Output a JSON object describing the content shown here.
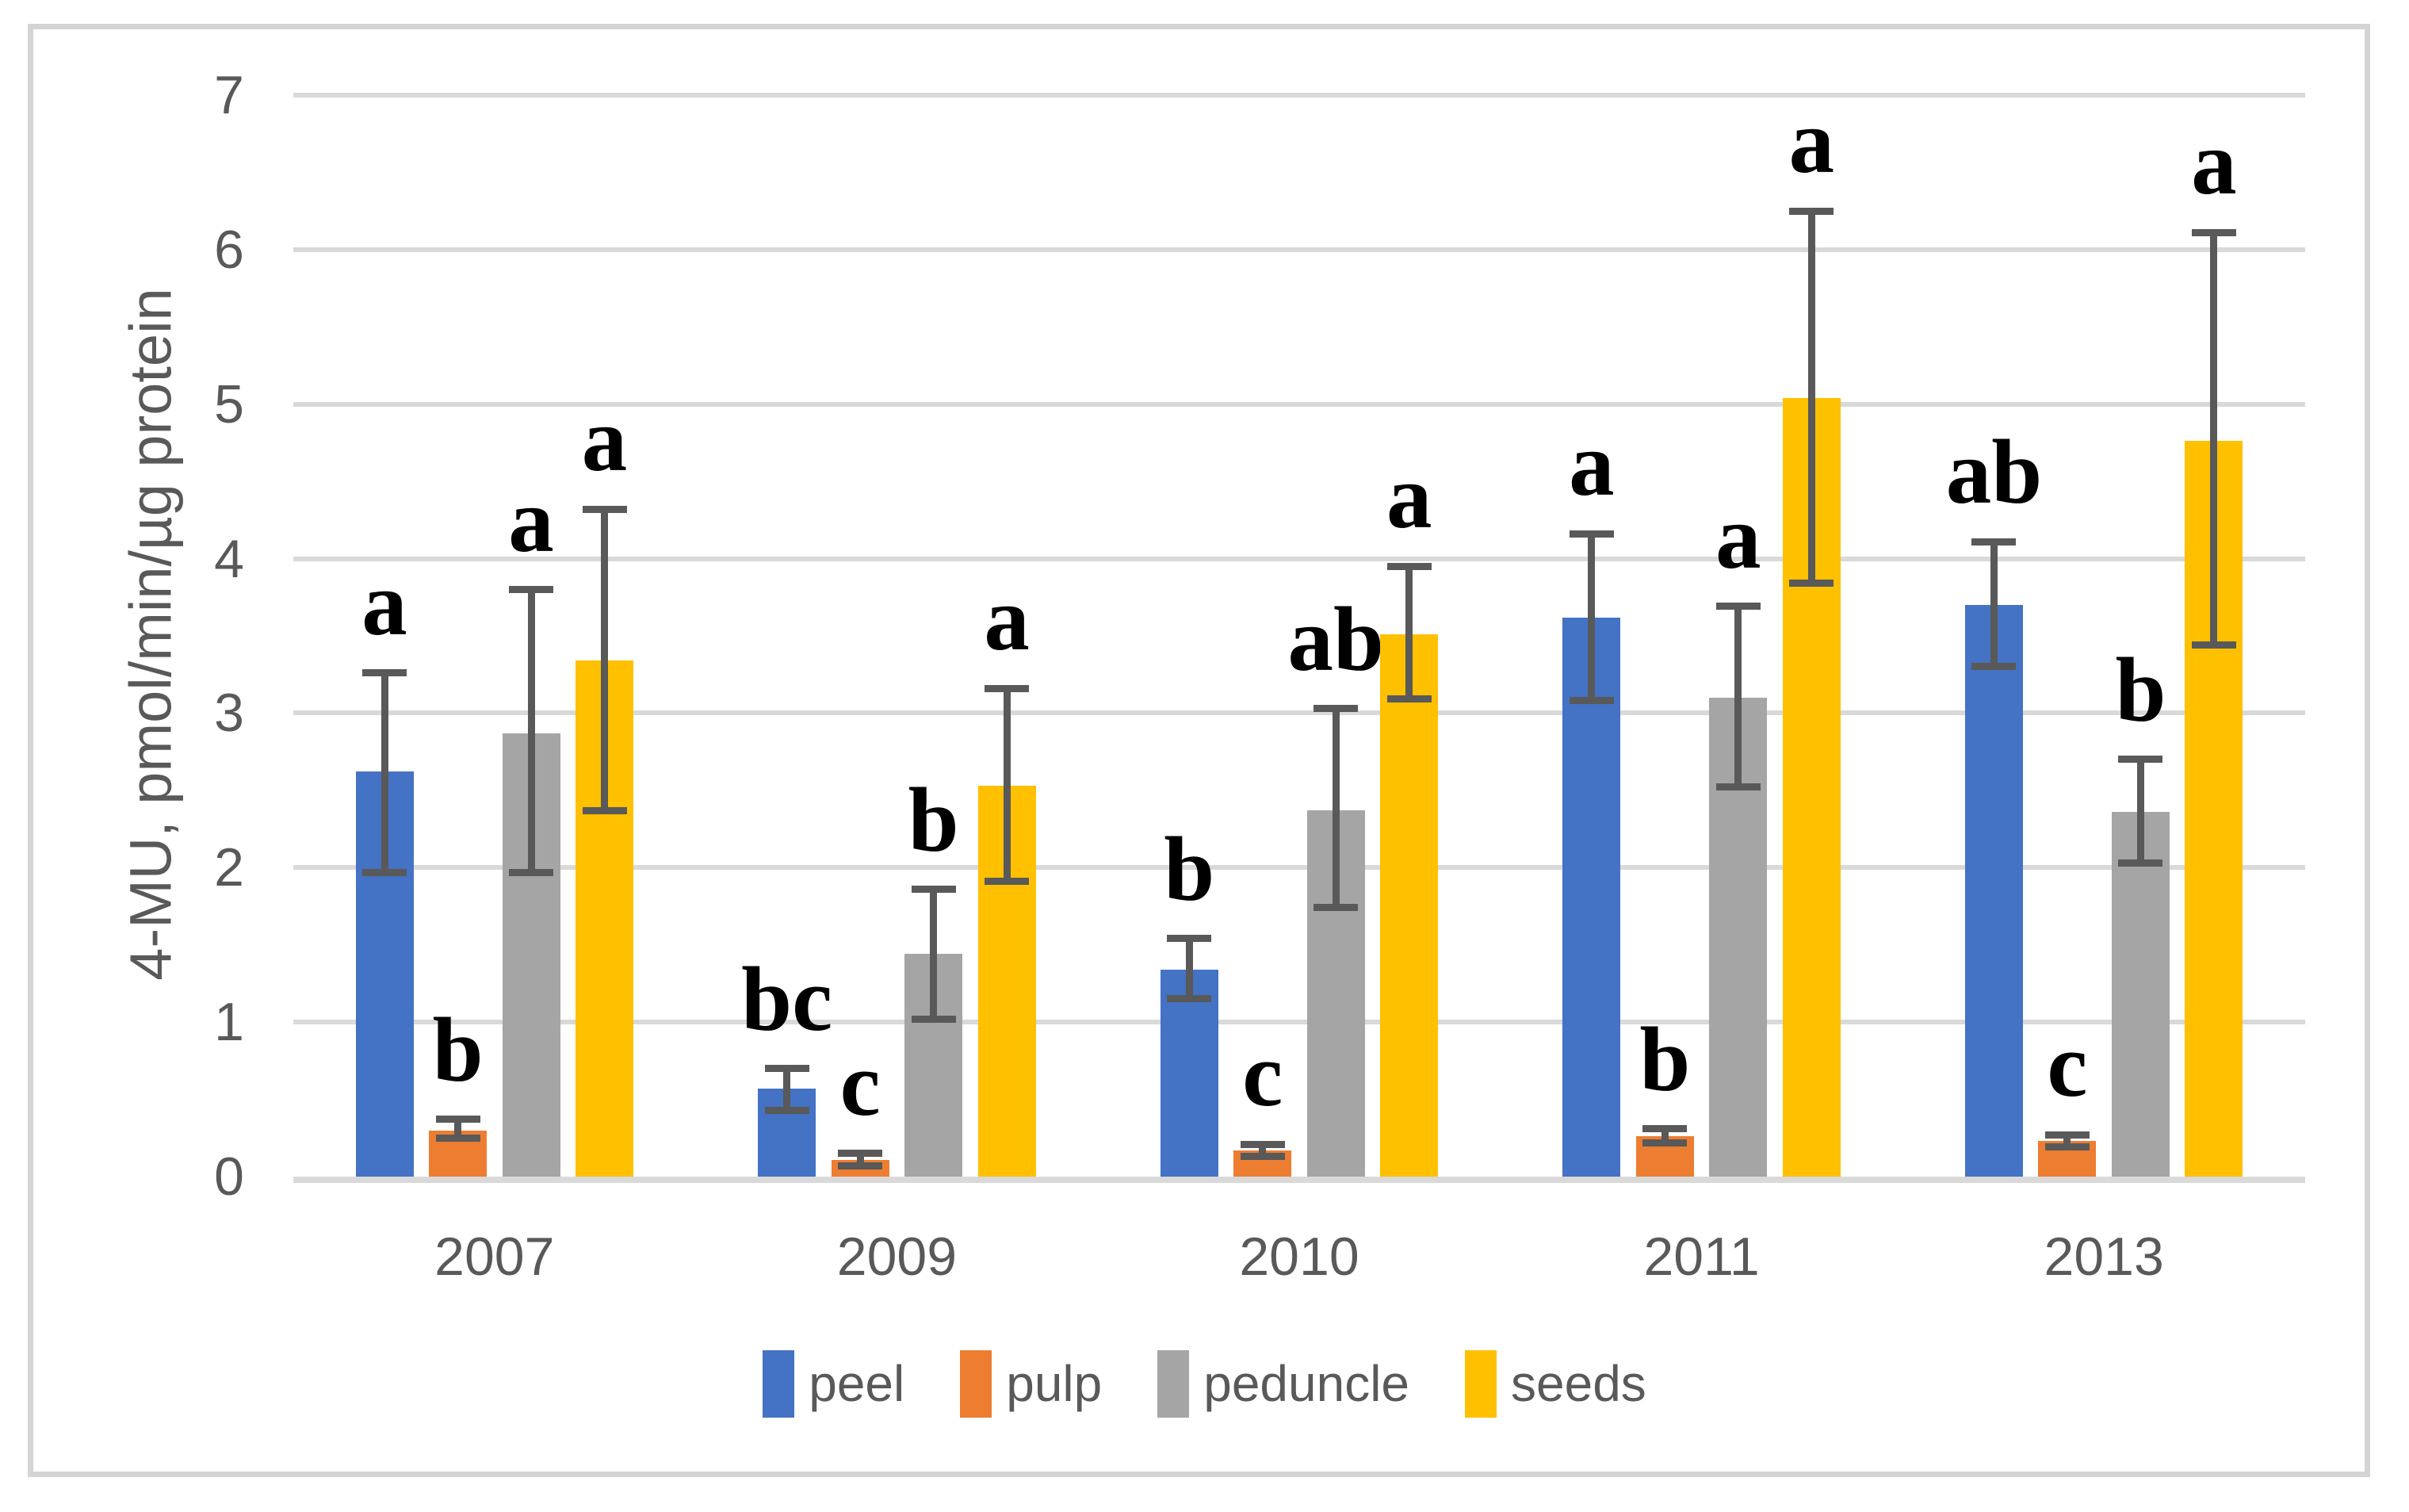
{
  "chart_data": {
    "type": "bar",
    "title": "",
    "xlabel": "",
    "ylabel": "4-MU, pmol/min/µg protein",
    "ylim": [
      0,
      7
    ],
    "yticks": [
      0,
      1,
      2,
      3,
      4,
      5,
      6,
      7
    ],
    "grid": true,
    "legend_position": "bottom",
    "categories": [
      "2007",
      "2009",
      "2010",
      "2011",
      "2013"
    ],
    "series": [
      {
        "name": "peel",
        "color": "#4472C4",
        "values": [
          2.62,
          0.57,
          1.34,
          3.62,
          3.7
        ],
        "err_low": [
          1.97,
          0.43,
          1.15,
          3.08,
          3.3
        ],
        "err_high": [
          3.26,
          0.7,
          1.54,
          4.16,
          4.11
        ],
        "letters": [
          "a",
          "bc",
          "b",
          "a",
          "ab"
        ]
      },
      {
        "name": "pulp",
        "color": "#ED7D31",
        "values": [
          0.3,
          0.11,
          0.17,
          0.26,
          0.23
        ],
        "err_low": [
          0.25,
          0.07,
          0.13,
          0.22,
          0.19
        ],
        "err_high": [
          0.37,
          0.15,
          0.21,
          0.31,
          0.27
        ],
        "letters": [
          "b",
          "c",
          "c",
          "b",
          "c"
        ]
      },
      {
        "name": "peduncle",
        "color": "#A5A5A5",
        "values": [
          2.87,
          1.44,
          2.37,
          3.1,
          2.36
        ],
        "err_low": [
          1.97,
          1.02,
          1.74,
          2.52,
          2.03
        ],
        "err_high": [
          3.8,
          1.86,
          3.03,
          3.69,
          2.7
        ],
        "letters": [
          "a",
          "b",
          "ab",
          "a",
          "b"
        ]
      },
      {
        "name": "seeds",
        "color": "#FFC000",
        "values": [
          3.34,
          2.53,
          3.51,
          5.04,
          4.76
        ],
        "err_low": [
          2.37,
          1.91,
          3.09,
          3.84,
          3.44
        ],
        "err_high": [
          4.32,
          3.16,
          3.95,
          6.25,
          6.11
        ],
        "letters": [
          "a",
          "a",
          "a",
          "a",
          "a"
        ]
      }
    ]
  }
}
